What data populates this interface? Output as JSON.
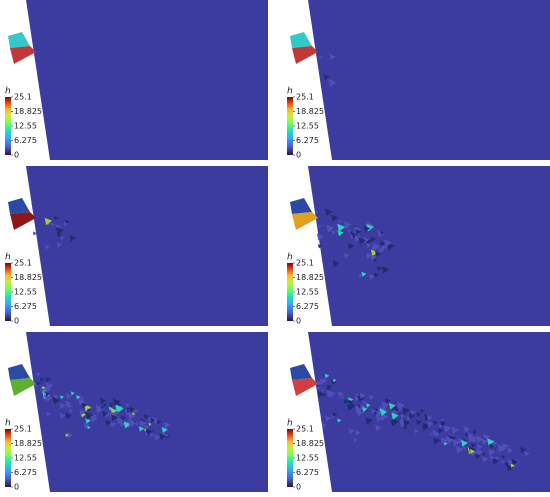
{
  "panels": [
    {
      "colorbar": {
        "label": "h",
        "ticks": [
          25.1,
          18.825,
          12.55,
          6.275,
          0
        ]
      }
    },
    {
      "colorbar": {
        "label": "h",
        "ticks": [
          25.1,
          18.825,
          12.55,
          6.275,
          0
        ]
      }
    },
    {
      "colorbar": {
        "label": "h",
        "ticks": [
          25.1,
          18.825,
          12.55,
          6.275,
          0
        ]
      }
    },
    {
      "colorbar": {
        "label": "h",
        "ticks": [
          25.1,
          18.825,
          12.55,
          6.275,
          0
        ]
      }
    },
    {
      "colorbar": {
        "label": "h",
        "ticks": [
          25.1,
          18.825,
          12.55,
          6.275,
          0
        ]
      }
    },
    {
      "colorbar": {
        "label": "h",
        "ticks": [
          25.1,
          18.825,
          12.55,
          6.275,
          0
        ]
      }
    }
  ]
}
